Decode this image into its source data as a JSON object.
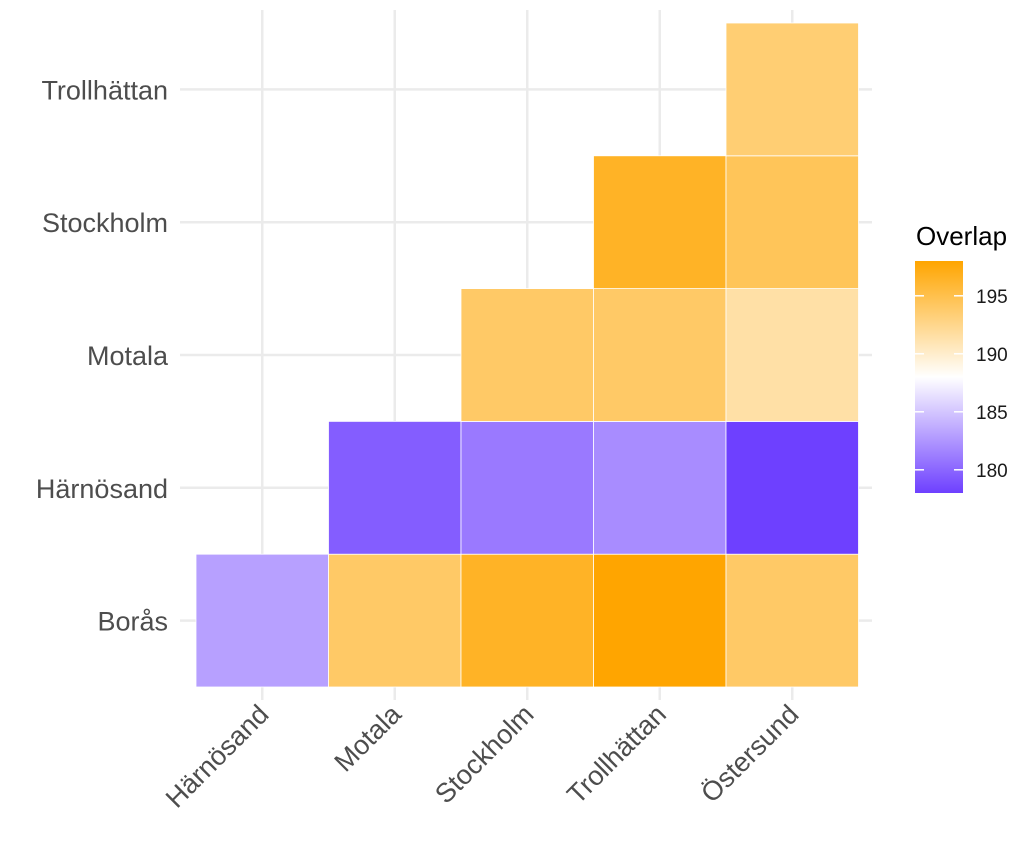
{
  "chart_data": {
    "type": "heatmap",
    "x_categories": [
      "Härnösand",
      "Motala",
      "Stockholm",
      "Trollhättan",
      "Östersund"
    ],
    "y_categories": [
      "Borås",
      "Härnösand",
      "Motala",
      "Stockholm",
      "Trollhättan"
    ],
    "cells": [
      {
        "x": "Härnösand",
        "y": "Borås",
        "value": 183
      },
      {
        "x": "Motala",
        "y": "Borås",
        "value": 194
      },
      {
        "x": "Stockholm",
        "y": "Borås",
        "value": 196.5
      },
      {
        "x": "Trollhättan",
        "y": "Borås",
        "value": 198
      },
      {
        "x": "Östersund",
        "y": "Borås",
        "value": 194
      },
      {
        "x": "Motala",
        "y": "Härnösand",
        "value": 179.5
      },
      {
        "x": "Stockholm",
        "y": "Härnösand",
        "value": 181
      },
      {
        "x": "Trollhättan",
        "y": "Härnösand",
        "value": 182
      },
      {
        "x": "Östersund",
        "y": "Härnösand",
        "value": 178
      },
      {
        "x": "Stockholm",
        "y": "Motala",
        "value": 194
      },
      {
        "x": "Trollhättan",
        "y": "Motala",
        "value": 194
      },
      {
        "x": "Östersund",
        "y": "Motala",
        "value": 191.5
      },
      {
        "x": "Trollhättan",
        "y": "Stockholm",
        "value": 196.5
      },
      {
        "x": "Östersund",
        "y": "Stockholm",
        "value": 194.5
      },
      {
        "x": "Östersund",
        "y": "Trollhättan",
        "value": 193.5
      }
    ],
    "legend": {
      "title": "Overlap",
      "ticks": [
        195,
        190,
        185,
        180
      ],
      "range": [
        178,
        198
      ],
      "colors": {
        "low": "#6e40ff",
        "mid": "#ffffff",
        "high": "#ffa500"
      },
      "position": "right"
    },
    "grid": true,
    "xlabel": "",
    "ylabel": "",
    "title": ""
  }
}
